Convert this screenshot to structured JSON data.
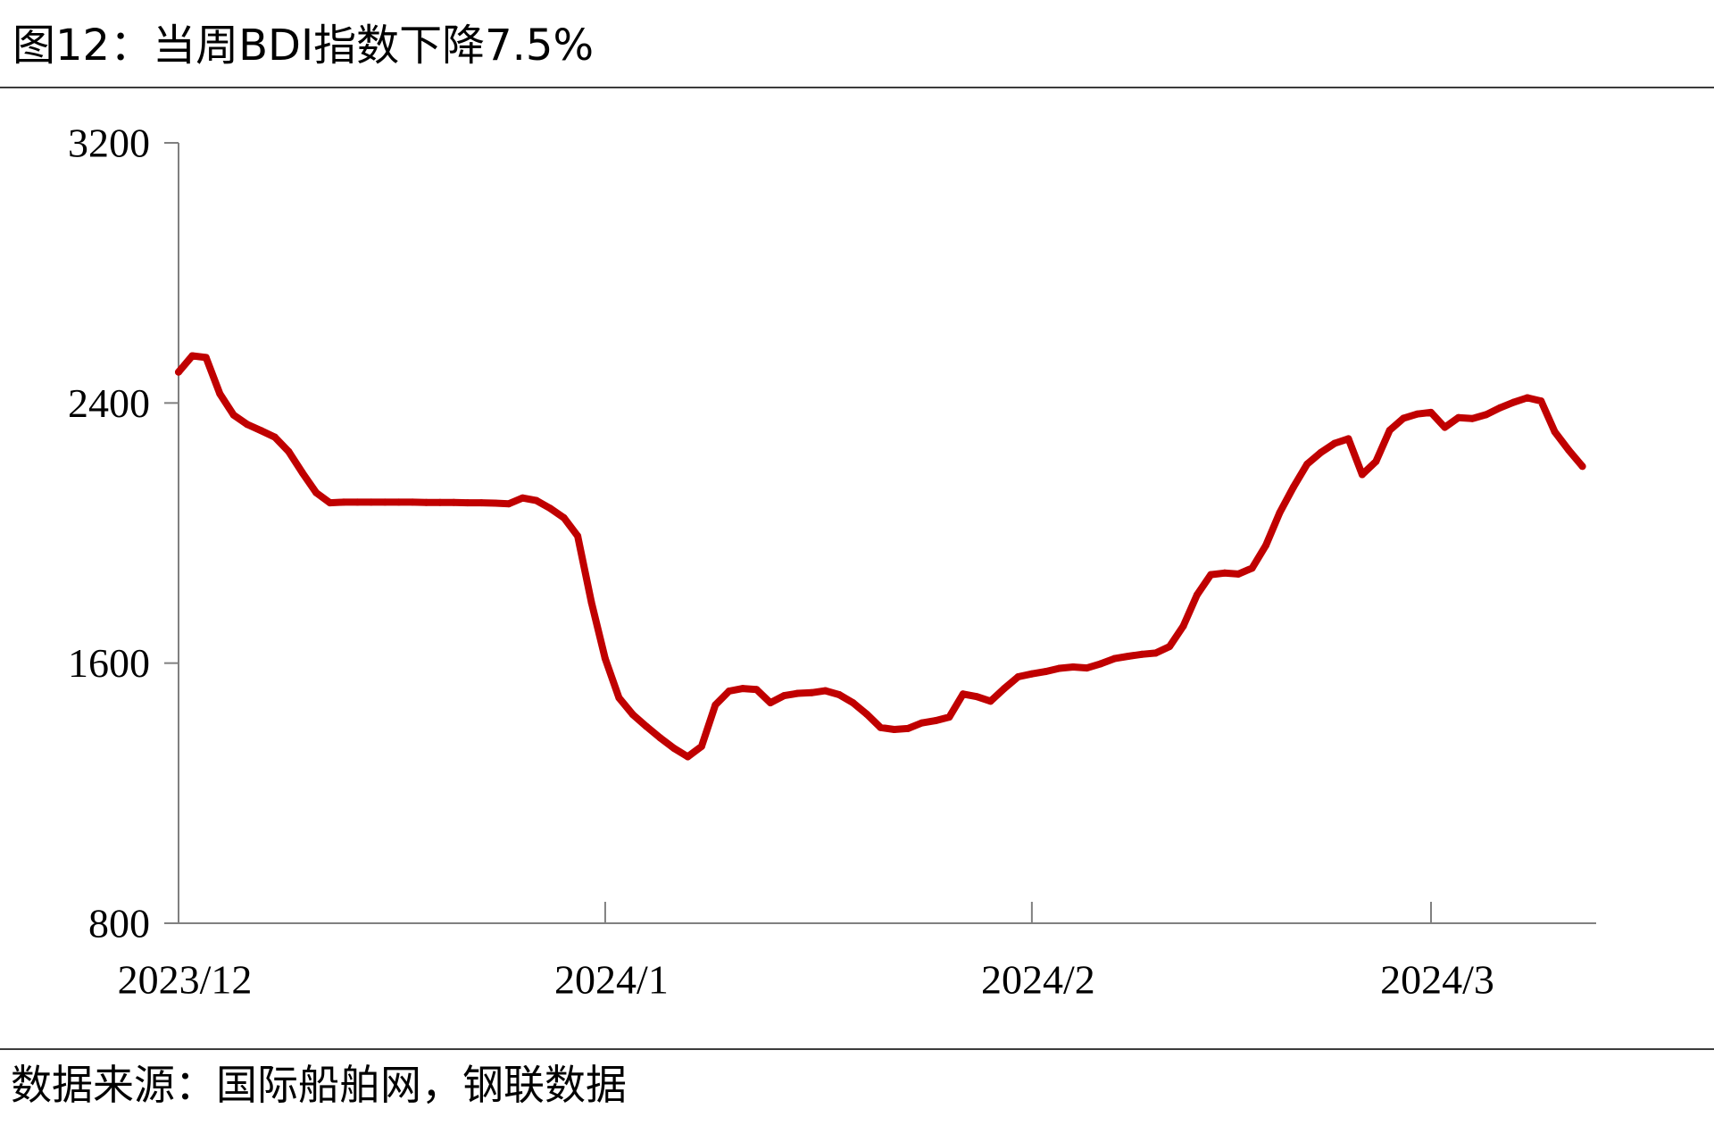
{
  "colors": {
    "series_line": "#C00000",
    "axis": "#808080"
  },
  "chart_data": {
    "type": "line",
    "title": "图12：当周BDI指数下降7.5%",
    "source": "数据来源：国际船舶网，钢联数据",
    "xlabel": "",
    "ylabel": "",
    "grid": false,
    "legend": "none",
    "xlim": [
      "2023/12/01",
      "2024/03/13"
    ],
    "ylim": [
      800,
      3200
    ],
    "yticks": [
      800,
      1600,
      2400,
      3200
    ],
    "xticks": [
      {
        "date": "2023/12/01",
        "label": "2023/12"
      },
      {
        "date": "2024/01/01",
        "label": "2024/1"
      },
      {
        "date": "2024/02/01",
        "label": "2024/2"
      },
      {
        "date": "2024/03/01",
        "label": "2024/3"
      }
    ],
    "x": [
      "2023/12/01",
      "2023/12/02",
      "2023/12/03",
      "2023/12/04",
      "2023/12/05",
      "2023/12/06",
      "2023/12/07",
      "2023/12/08",
      "2023/12/09",
      "2023/12/10",
      "2023/12/11",
      "2023/12/12",
      "2023/12/13",
      "2023/12/14",
      "2023/12/15",
      "2023/12/16",
      "2023/12/17",
      "2023/12/18",
      "2023/12/19",
      "2023/12/20",
      "2023/12/21",
      "2023/12/22",
      "2023/12/23",
      "2023/12/24",
      "2023/12/25",
      "2023/12/26",
      "2023/12/27",
      "2023/12/28",
      "2023/12/29",
      "2023/12/30",
      "2023/12/31",
      "2024/01/01",
      "2024/01/02",
      "2024/01/03",
      "2024/01/04",
      "2024/01/05",
      "2024/01/06",
      "2024/01/07",
      "2024/01/08",
      "2024/01/09",
      "2024/01/10",
      "2024/01/11",
      "2024/01/12",
      "2024/01/13",
      "2024/01/14",
      "2024/01/15",
      "2024/01/16",
      "2024/01/17",
      "2024/01/18",
      "2024/01/19",
      "2024/01/20",
      "2024/01/21",
      "2024/01/22",
      "2024/01/23",
      "2024/01/24",
      "2024/01/25",
      "2024/01/26",
      "2024/01/27",
      "2024/01/28",
      "2024/01/29",
      "2024/01/30",
      "2024/01/31",
      "2024/02/01",
      "2024/02/02",
      "2024/02/03",
      "2024/02/04",
      "2024/02/05",
      "2024/02/06",
      "2024/02/07",
      "2024/02/08",
      "2024/02/09",
      "2024/02/10",
      "2024/02/11",
      "2024/02/12",
      "2024/02/13",
      "2024/02/14",
      "2024/02/15",
      "2024/02/16",
      "2024/02/17",
      "2024/02/18",
      "2024/02/19",
      "2024/02/20",
      "2024/02/21",
      "2024/02/22",
      "2024/02/23",
      "2024/02/24",
      "2024/02/25",
      "2024/02/26",
      "2024/02/27",
      "2024/02/28",
      "2024/02/29",
      "2024/03/01",
      "2024/03/02",
      "2024/03/03",
      "2024/03/04",
      "2024/03/05",
      "2024/03/06",
      "2024/03/07",
      "2024/03/08",
      "2024/03/09",
      "2024/03/10",
      "2024/03/11",
      "2024/03/12"
    ],
    "values": [
      2495,
      2545,
      2540,
      2428,
      2363,
      2334,
      2315,
      2295,
      2251,
      2185,
      2124,
      2093,
      2095,
      2095,
      2095,
      2095,
      2095,
      2095,
      2094,
      2094,
      2094,
      2093,
      2093,
      2092,
      2090,
      2108,
      2100,
      2076,
      2047,
      1991,
      1787,
      1614,
      1493,
      1442,
      1405,
      1370,
      1338,
      1312,
      1344,
      1471,
      1514,
      1522,
      1519,
      1478,
      1500,
      1507,
      1509,
      1515,
      1503,
      1478,
      1443,
      1402,
      1396,
      1399,
      1416,
      1423,
      1434,
      1505,
      1497,
      1483,
      1522,
      1558,
      1567,
      1574,
      1584,
      1588,
      1585,
      1598,
      1614,
      1621,
      1627,
      1631,
      1651,
      1714,
      1810,
      1872,
      1877,
      1874,
      1892,
      1962,
      2062,
      2141,
      2212,
      2248,
      2276,
      2290,
      2180,
      2220,
      2316,
      2353,
      2366,
      2371,
      2325,
      2355,
      2352,
      2364,
      2385,
      2402,
      2416,
      2406,
      2311,
      2255,
      2205
    ]
  }
}
